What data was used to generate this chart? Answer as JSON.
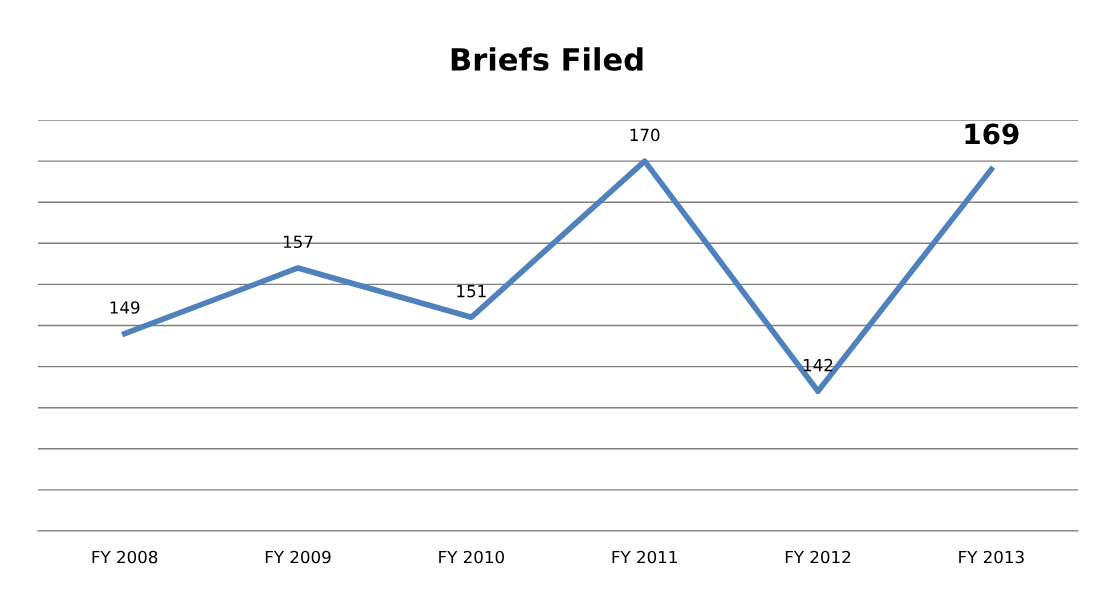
{
  "chart_data": {
    "type": "line",
    "title": "Briefs Filed",
    "categories": [
      "FY 2008",
      "FY 2009",
      "FY 2010",
      "FY 2011",
      "FY 2012",
      "FY 2013"
    ],
    "series": [
      {
        "color": "#4f81bd",
        "values": [
          149,
          157,
          151,
          170,
          142,
          169
        ]
      }
    ],
    "data_labels": true,
    "tick_labels": "x",
    "grid": "y",
    "marker": "none",
    "line_style": "solid",
    "ylim": [
      125,
      175
    ],
    "yticks": [
      {
        "value": 125,
        "label": null
      },
      {
        "value": 130,
        "label": null
      },
      {
        "value": 135,
        "label": null
      },
      {
        "value": 140,
        "label": null
      },
      {
        "value": 145,
        "label": null
      },
      {
        "value": 150,
        "label": null
      },
      {
        "value": 155,
        "label": null
      },
      {
        "value": 160,
        "label": null
      },
      {
        "value": 165,
        "label": null
      },
      {
        "value": 170,
        "label": null
      },
      {
        "value": 175,
        "label": null
      }
    ]
  }
}
